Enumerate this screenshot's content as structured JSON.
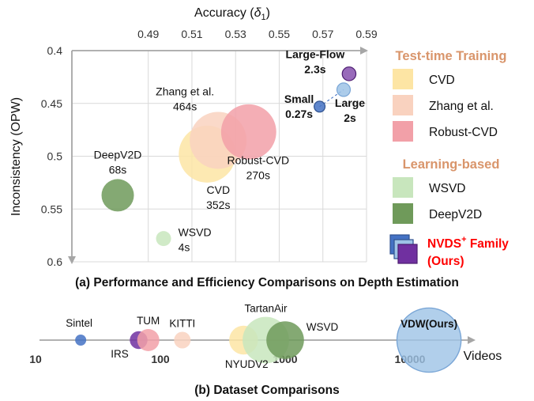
{
  "chart_data": [
    {
      "type": "scatter",
      "caption": "(a) Performance and Efficiency Comparisons on Depth Estimation",
      "xlabel_prefix": "Accuracy (",
      "xlabel_symbol": "δ",
      "xlabel_sub": "1",
      "xlabel_suffix": ")",
      "ylabel": "Inconsistency (OPW)",
      "xlim": [
        0.455,
        0.59
      ],
      "ylim": [
        0.6,
        0.4
      ],
      "x_ticks": [
        "0.49",
        "0.51",
        "0.53",
        "0.55",
        "0.57",
        "0.59"
      ],
      "y_ticks": [
        "0.4",
        "0.45",
        "0.5",
        "0.55",
        "0.6"
      ],
      "grid": true,
      "x_axis_position": "top",
      "y_axis_inverted": true,
      "points": [
        {
          "name": "DeepV2D",
          "time": "68s",
          "x": 0.476,
          "y": 0.537,
          "size": 68,
          "color": "#6f9a5a",
          "label_pos": "above"
        },
        {
          "name": "WSVD",
          "time": "4s",
          "x": 0.497,
          "y": 0.578,
          "size": 4,
          "color": "#c8e6bd",
          "label_pos": "right"
        },
        {
          "name": "CVD",
          "time": "352s",
          "x": 0.517,
          "y": 0.498,
          "size": 352,
          "color": "#fde5a4",
          "label_pos": "below"
        },
        {
          "name": "Zhang et al.",
          "time": "464s",
          "x": 0.522,
          "y": 0.485,
          "size": 464,
          "color": "#f9d2bf",
          "label_pos": "above-left"
        },
        {
          "name": "Robust-CVD",
          "time": "270s",
          "x": 0.536,
          "y": 0.477,
          "size": 270,
          "color": "#f2a0a8",
          "label_pos": "below-right"
        },
        {
          "name": "Small",
          "time": "0.27s",
          "x": 0.5685,
          "y": 0.453,
          "size": 0.27,
          "color": "#4472c4",
          "label_pos": "left"
        },
        {
          "name": "Large",
          "time": "2s",
          "x": 0.5795,
          "y": 0.437,
          "size": 2,
          "color": "#9dc3e6",
          "label_pos": "below"
        },
        {
          "name": "Large-Flow",
          "time": "2.3s",
          "x": 0.582,
          "y": 0.422,
          "size": 2.3,
          "color": "#7030a0",
          "label_pos": "left"
        }
      ],
      "legend": {
        "position": "right",
        "groups": [
          {
            "title": "Test-time Training",
            "entries": [
              {
                "label": "CVD",
                "color": "#fde5a4"
              },
              {
                "label": "Zhang et al.",
                "color": "#f9d2bf"
              },
              {
                "label": "Robust-CVD",
                "color": "#f2a0a8"
              }
            ]
          },
          {
            "title": "Learning-based",
            "entries": [
              {
                "label": "WSVD",
                "color": "#c8e6bd"
              },
              {
                "label": "DeepV2D",
                "color": "#6f9a5a"
              }
            ]
          }
        ],
        "family": {
          "label": "NVDS",
          "sup": "+",
          "label_suffix": " Family",
          "note": "(Ours)",
          "color": "#ff0000",
          "swatch_colors": [
            "#4472c4",
            "#9dc3e6",
            "#7030a0"
          ]
        }
      }
    },
    {
      "type": "scatter",
      "caption": "(b) Dataset Comparisons",
      "x_scale": "log",
      "xlabel": "Videos",
      "x_ticks": [
        "10",
        "100",
        "1000",
        "10000"
      ],
      "datasets": [
        {
          "name": "Sintel",
          "videos": 23,
          "color": "#4472c4",
          "size": 1,
          "label_pos": "above-left"
        },
        {
          "name": "IRS",
          "videos": 67,
          "color": "#7030a0",
          "size": 1.6,
          "label_pos": "below-left"
        },
        {
          "name": "TUM",
          "videos": 80,
          "color": "#f2a0a8",
          "size": 2,
          "label_pos": "above"
        },
        {
          "name": "KITTI",
          "videos": 150,
          "color": "#f9d2bf",
          "size": 1.5,
          "label_pos": "above"
        },
        {
          "name": "NYUDV2",
          "videos": 464,
          "color": "#fde5a4",
          "size": 2.6,
          "label_pos": "below"
        },
        {
          "name": "TartanAir",
          "videos": 700,
          "color": "#c8e6bd",
          "size": 4.2,
          "label_pos": "above"
        },
        {
          "name": "WSVD",
          "videos": 1000,
          "color": "#6f9a5a",
          "size": 3.4,
          "label_pos": "above-right"
        },
        {
          "name": "VDW(Ours)",
          "videos": 14203,
          "color": "#9dc3e6",
          "size": 5.8,
          "label_pos": "center",
          "label_color": "#ff0000"
        }
      ]
    }
  ]
}
